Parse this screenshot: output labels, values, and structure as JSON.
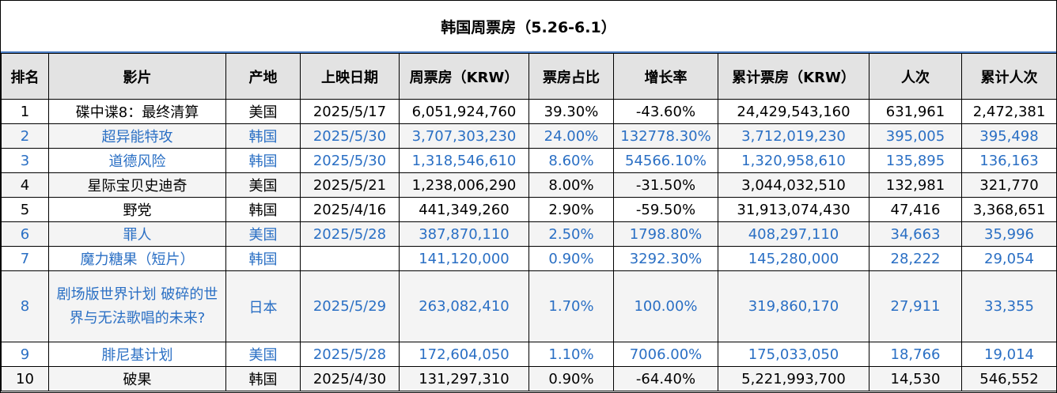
{
  "title": "韩国周票房（5.26-6.1）",
  "columns": [
    "排名",
    "影片",
    "产地",
    "上映日期",
    "周票房（KRW）",
    "票房占比",
    "增长率",
    "累计票房（KRW）",
    "人次",
    "累计人次"
  ],
  "rows": [
    {
      "rank": "1",
      "film": "碟中谍8：最终清算",
      "origin": "美国",
      "release": "2025/5/17",
      "weekly": "6,051,924,760",
      "share": "39.30%",
      "growth": "-43.60%",
      "total": "24,429,543,160",
      "admissions": "631,961",
      "total_admissions": "2,472,381"
    },
    {
      "rank": "2",
      "film": "超异能特攻",
      "origin": "韩国",
      "release": "2025/5/30",
      "weekly": "3,707,303,230",
      "share": "24.00%",
      "growth": "132778.30%",
      "total": "3,712,019,230",
      "admissions": "395,005",
      "total_admissions": "395,498"
    },
    {
      "rank": "3",
      "film": "道德风险",
      "origin": "韩国",
      "release": "2025/5/30",
      "weekly": "1,318,546,610",
      "share": "8.60%",
      "growth": "54566.10%",
      "total": "1,320,958,610",
      "admissions": "135,895",
      "total_admissions": "136,163"
    },
    {
      "rank": "4",
      "film": "星际宝贝史迪奇",
      "origin": "美国",
      "release": "2025/5/21",
      "weekly": "1,238,006,290",
      "share": "8.00%",
      "growth": "-31.50%",
      "total": "3,044,032,510",
      "admissions": "132,981",
      "total_admissions": "321,770"
    },
    {
      "rank": "5",
      "film": "野党",
      "origin": "韩国",
      "release": "2025/4/16",
      "weekly": "441,349,260",
      "share": "2.90%",
      "growth": "-59.50%",
      "total": "31,913,074,430",
      "admissions": "47,416",
      "total_admissions": "3,368,651"
    },
    {
      "rank": "6",
      "film": "罪人",
      "origin": "美国",
      "release": "2025/5/28",
      "weekly": "387,870,110",
      "share": "2.50%",
      "growth": "1798.80%",
      "total": "408,297,110",
      "admissions": "34,663",
      "total_admissions": "35,996"
    },
    {
      "rank": "7",
      "film": "魔力糖果（短片）",
      "origin": "韩国",
      "release": "",
      "weekly": "141,120,000",
      "share": "0.90%",
      "growth": "3292.30%",
      "total": "145,280,000",
      "admissions": "28,222",
      "total_admissions": "29,054"
    },
    {
      "rank": "8",
      "film": "剧场版世界计划 破碎的世界与无法歌唱的未来?",
      "origin": "日本",
      "release": "2025/5/29",
      "weekly": "263,082,410",
      "share": "1.70%",
      "growth": "100.00%",
      "total": "319,860,170",
      "admissions": "27,911",
      "total_admissions": "33,355"
    },
    {
      "rank": "9",
      "film": "腓尼基计划",
      "origin": "美国",
      "release": "2025/5/28",
      "weekly": "172,604,050",
      "share": "1.10%",
      "growth": "7006.00%",
      "total": "175,033,050",
      "admissions": "18,766",
      "total_admissions": "19,014"
    },
    {
      "rank": "10",
      "film": "破果",
      "origin": "韩国",
      "release": "2025/4/30",
      "weekly": "131,297,310",
      "share": "0.90%",
      "growth": "-64.40%",
      "total": "5,221,993,700",
      "admissions": "14,530",
      "total_admissions": "546,552"
    }
  ],
  "colors": {
    "header_bg": "#e3e3e3",
    "link_text": "#2a6fc4",
    "accent_line": "#4a7ec6",
    "border": "#000000"
  }
}
